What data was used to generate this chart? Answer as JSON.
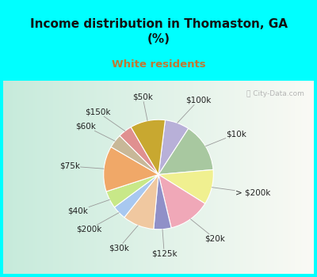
{
  "title": "Income distribution in Thomaston, GA\n(%)",
  "subtitle": "White residents",
  "title_color": "#111111",
  "subtitle_color": "#c07832",
  "bg_color": "#00ffff",
  "chart_bg_left": "#c8e8d8",
  "chart_bg_right": "#f0f8f8",
  "labels": [
    "$100k",
    "$10k",
    "> $200k",
    "$20k",
    "$125k",
    "$30k",
    "$200k",
    "$40k",
    "$75k",
    "$60k",
    "$150k",
    "$50k"
  ],
  "values": [
    7,
    14,
    10,
    12,
    5,
    9,
    4,
    5,
    13,
    4,
    4,
    10
  ],
  "colors": [
    "#b8b0d8",
    "#a8c8a0",
    "#f0f090",
    "#f0a8b8",
    "#9090c8",
    "#f0c8a0",
    "#a8c8f0",
    "#c8e888",
    "#f0a868",
    "#c8b898",
    "#e09090",
    "#c8a830"
  ],
  "watermark": "ⓘ City-Data.com",
  "startangle": 83,
  "label_fontsize": 7.5,
  "title_fontsize": 11
}
